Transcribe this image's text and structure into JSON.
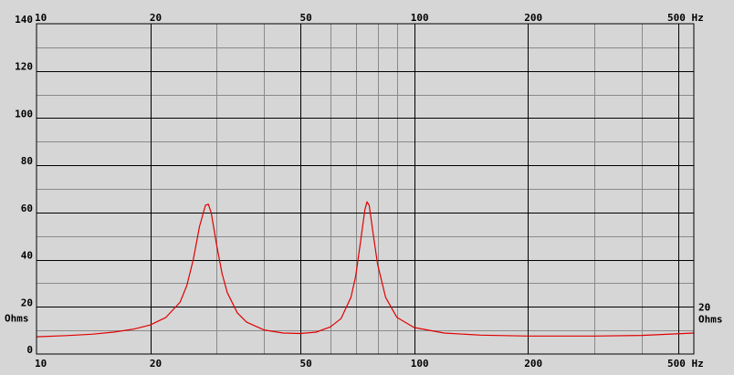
{
  "chart_data": {
    "type": "line",
    "title": "",
    "xlabel": "",
    "ylabel": "",
    "x_scale": "log",
    "xlim": [
      10,
      550
    ],
    "ylim": [
      0,
      140
    ],
    "grid": true,
    "x_major_ticks": [
      {
        "value": 10,
        "label": "10"
      },
      {
        "value": 20,
        "label": "20"
      },
      {
        "value": 50,
        "label": "50"
      },
      {
        "value": 100,
        "label": "100"
      },
      {
        "value": 200,
        "label": "200"
      },
      {
        "value": 500,
        "label": "500 Hz"
      }
    ],
    "x_minor_ticks": [
      30,
      40,
      60,
      70,
      80,
      90,
      300,
      400
    ],
    "y_ticks": [
      {
        "value": 0,
        "label": "0"
      },
      {
        "value": 20,
        "label": "20"
      },
      {
        "value": 40,
        "label": "40"
      },
      {
        "value": 60,
        "label": "60"
      },
      {
        "value": 80,
        "label": "80"
      },
      {
        "value": 100,
        "label": "100"
      },
      {
        "value": 120,
        "label": "120"
      },
      {
        "value": 140,
        "label": "140"
      }
    ],
    "y_unit_label": "Ohms",
    "right_axis_labels": [
      {
        "value": 20,
        "label": "20"
      }
    ],
    "series": [
      {
        "color": "#e00000",
        "x": [
          10,
          12,
          14,
          16,
          18,
          20,
          22,
          24,
          25,
          26,
          27,
          28,
          28.5,
          29,
          30,
          31,
          32,
          34,
          36,
          40,
          45,
          50,
          55,
          60,
          64,
          68,
          70,
          72,
          74,
          75,
          76,
          78,
          80,
          84,
          90,
          100,
          120,
          150,
          200,
          300,
          400,
          550
        ],
        "values": [
          7.3,
          7.8,
          8.4,
          9.3,
          10.5,
          12.3,
          15.5,
          22,
          29,
          40,
          54,
          63,
          63.5,
          60,
          46,
          34,
          26,
          17.5,
          13.5,
          10.2,
          8.9,
          8.7,
          9.3,
          11.5,
          15,
          24,
          33,
          47,
          61,
          64.5,
          63,
          50,
          38,
          24,
          15.5,
          11.2,
          8.9,
          8.0,
          7.6,
          7.6,
          7.9,
          8.9
        ]
      }
    ]
  }
}
